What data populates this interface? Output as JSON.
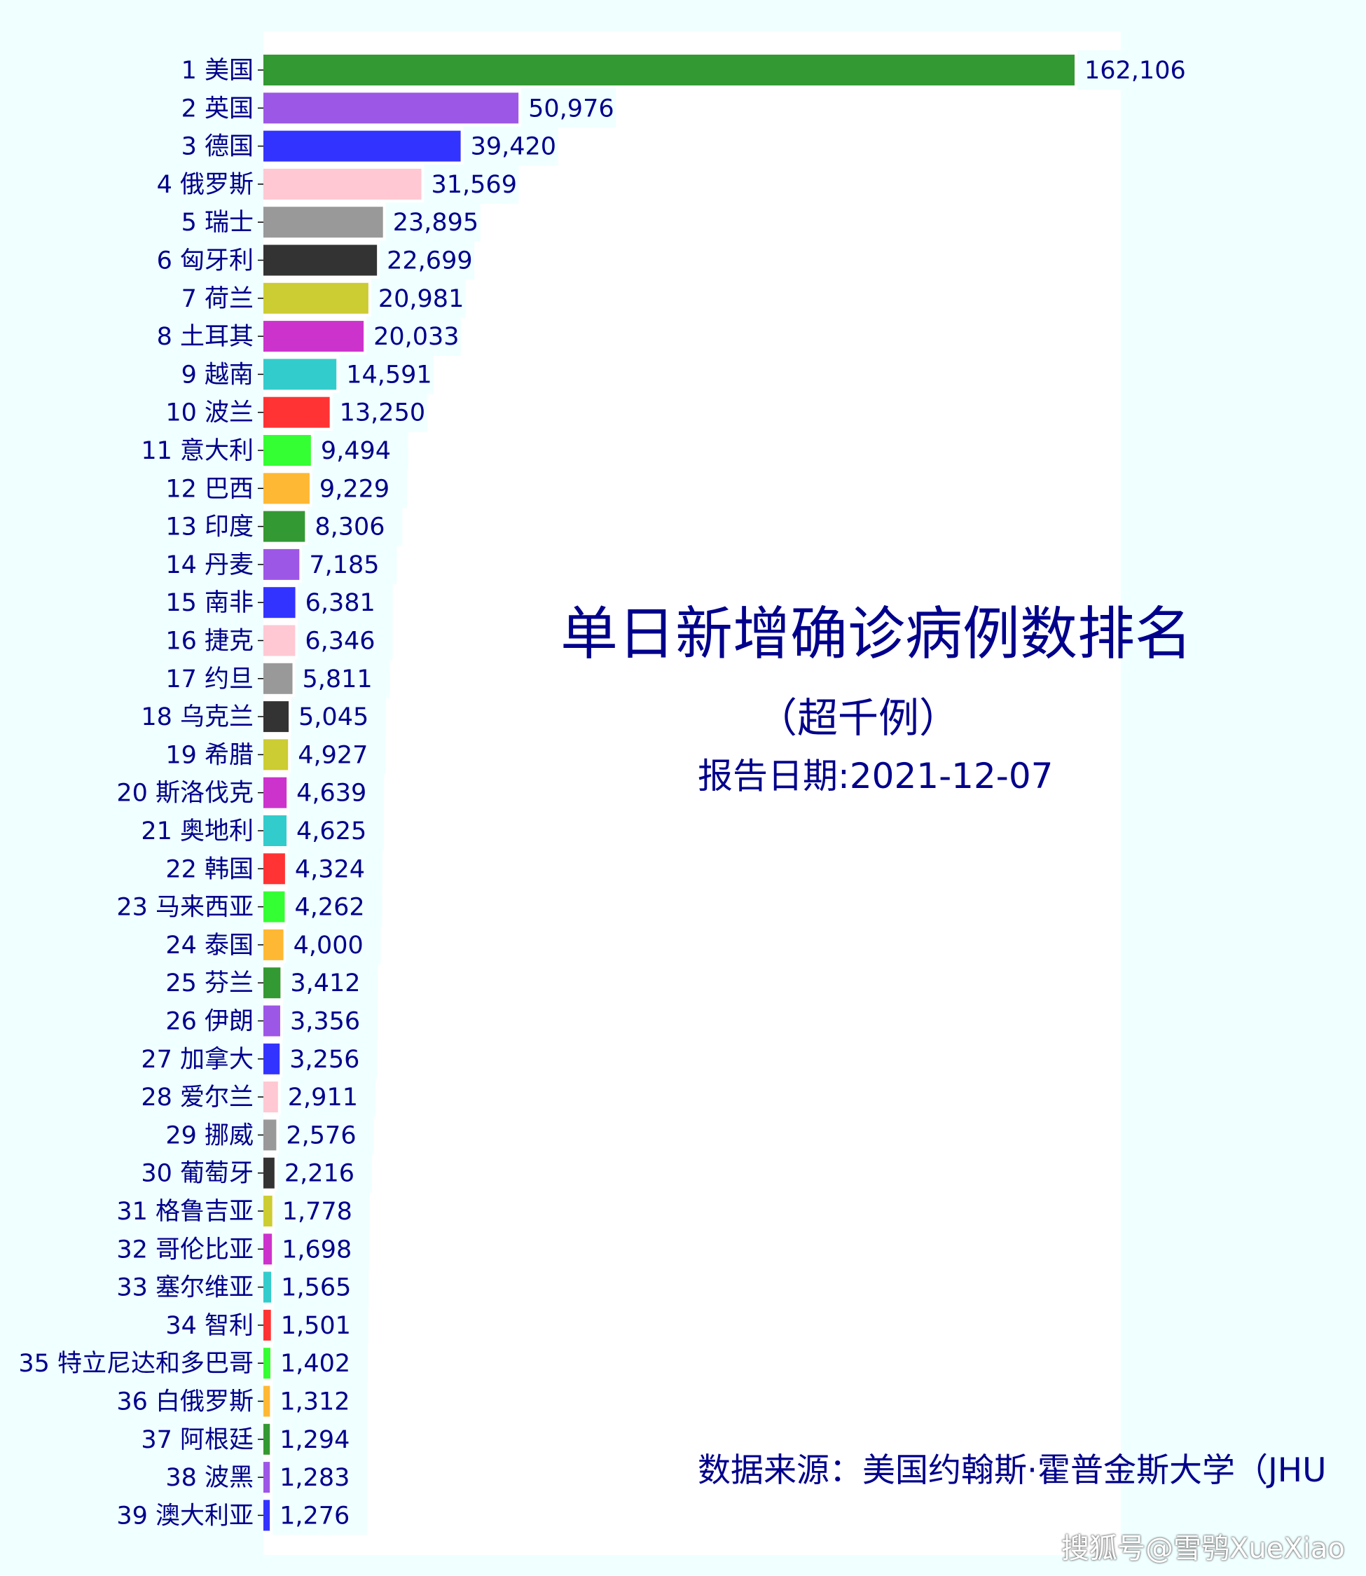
{
  "chart_data": {
    "type": "bar",
    "orientation": "horizontal",
    "title": "单日新增确诊病例数排名",
    "subtitle": "（超千例）",
    "date_label": "报告日期:",
    "date_value": "2021-12-07",
    "source": "数据来源：美国约翰斯·霍普金斯大学（JHU",
    "categories": [
      "1 美国",
      "2 英国",
      "3 德国",
      "4 俄罗斯",
      "5 瑞士",
      "6 匈牙利",
      "7 荷兰",
      "8 土耳其",
      "9 越南",
      "10 波兰",
      "11 意大利",
      "12 巴西",
      "13 印度",
      "14 丹麦",
      "15 南非",
      "16 捷克",
      "17 约旦",
      "18 乌克兰",
      "19 希腊",
      "20 斯洛伐克",
      "21 奥地利",
      "22 韩国",
      "23 马来西亚",
      "24 泰国",
      "25 芬兰",
      "26 伊朗",
      "27 加拿大",
      "28 爱尔兰",
      "29 挪威",
      "30 葡萄牙",
      "31 格鲁吉亚",
      "32 哥伦比亚",
      "33 塞尔维亚",
      "34 智利",
      "35 特立尼达和多巴哥",
      "36 白俄罗斯",
      "37 阿根廷",
      "38 波黑",
      "39 澳大利亚"
    ],
    "values": [
      162106,
      50976,
      39420,
      31569,
      23895,
      22699,
      20981,
      20033,
      14591,
      13250,
      9494,
      9229,
      8306,
      7185,
      6381,
      6346,
      5811,
      5045,
      4927,
      4639,
      4625,
      4324,
      4262,
      4000,
      3412,
      3356,
      3256,
      2911,
      2576,
      2216,
      1778,
      1698,
      1565,
      1501,
      1402,
      1312,
      1294,
      1283,
      1276
    ],
    "value_labels": [
      "162,106",
      "50,976",
      "39,420",
      "31,569",
      "23,895",
      "22,699",
      "20,981",
      "20,033",
      "14,591",
      "13,250",
      "9,494",
      "9,229",
      "8,306",
      "7,185",
      "6,381",
      "6,346",
      "5,811",
      "5,045",
      "4,927",
      "4,639",
      "4,625",
      "4,324",
      "4,262",
      "4,000",
      "3,412",
      "3,356",
      "3,256",
      "2,911",
      "2,576",
      "2,216",
      "1,778",
      "1,698",
      "1,565",
      "1,501",
      "1,402",
      "1,312",
      "1,294",
      "1,283",
      "1,276"
    ],
    "palette": [
      "#339933",
      "#9d57e6",
      "#3333ff",
      "#ffc8d2",
      "#999999",
      "#333333",
      "#cccc33",
      "#cc33cc",
      "#33cccc",
      "#ff3333",
      "#33ff33",
      "#ffb833"
    ],
    "xlim": [
      0,
      162106
    ],
    "grid": false,
    "legend": "none"
  },
  "watermark": "搜狐号@雪鸮XueXiao"
}
